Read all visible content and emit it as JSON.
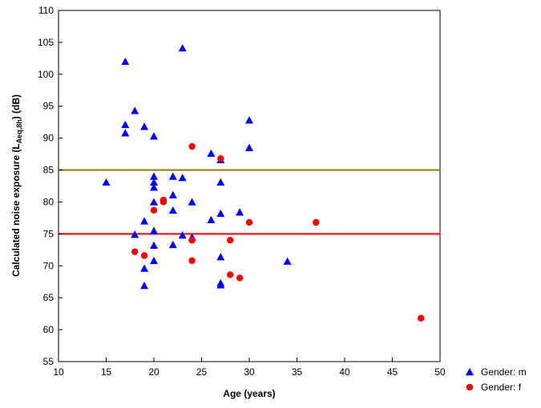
{
  "chart_data": {
    "type": "scatter",
    "title": "",
    "xlabel": "Age (years)",
    "ylabel": {
      "prefix": "Calculated noise exposure (L",
      "subscript": "Aeq,8h",
      "suffix": ") (dB)"
    },
    "xlim": [
      10,
      50
    ],
    "ylim": [
      55,
      110
    ],
    "xticks": [
      10,
      15,
      20,
      25,
      30,
      35,
      40,
      45,
      50
    ],
    "yticks": [
      55,
      60,
      65,
      70,
      75,
      80,
      85,
      90,
      95,
      100,
      105,
      110
    ],
    "grid": false,
    "legend_position": "bottom-right outside",
    "reference_lines": [
      {
        "y": 85,
        "color": "#8b7a00"
      },
      {
        "y": 75,
        "color": "#ff0000"
      }
    ],
    "series": [
      {
        "name": "Gender: m",
        "marker": "triangle",
        "color": "#0000ff",
        "points": [
          [
            15,
            83.1
          ],
          [
            17,
            102
          ],
          [
            17,
            92.1
          ],
          [
            17,
            90.8
          ],
          [
            18,
            94.3
          ],
          [
            18,
            74.9
          ],
          [
            19,
            91.8
          ],
          [
            19,
            77
          ],
          [
            19,
            69.6
          ],
          [
            19,
            66.9
          ],
          [
            20,
            90.3
          ],
          [
            20,
            84
          ],
          [
            20,
            83.1
          ],
          [
            20,
            82.3
          ],
          [
            20,
            80
          ],
          [
            20,
            75.5
          ],
          [
            20,
            73.2
          ],
          [
            20,
            70.8
          ],
          [
            22,
            84
          ],
          [
            22,
            81.1
          ],
          [
            22,
            78.7
          ],
          [
            22,
            73.3
          ],
          [
            23,
            104.1
          ],
          [
            23,
            83.8
          ],
          [
            23,
            74.8
          ],
          [
            24,
            80
          ],
          [
            24,
            74.5
          ],
          [
            26,
            87.6
          ],
          [
            26,
            77.2
          ],
          [
            27,
            86.6
          ],
          [
            27,
            83.1
          ],
          [
            27,
            78.2
          ],
          [
            27,
            71.4
          ],
          [
            27,
            67.3
          ],
          [
            27,
            67
          ],
          [
            29,
            78.4
          ],
          [
            30,
            92.8
          ],
          [
            30,
            88.5
          ],
          [
            34,
            70.7
          ]
        ]
      },
      {
        "name": "Gender: f",
        "marker": "circle",
        "color": "#ff0000",
        "points": [
          [
            18,
            72.2
          ],
          [
            19,
            71.6
          ],
          [
            20,
            78.7
          ],
          [
            21,
            80.3
          ],
          [
            21,
            80
          ],
          [
            24,
            88.7
          ],
          [
            24,
            74
          ],
          [
            24,
            70.8
          ],
          [
            27,
            86.8
          ],
          [
            28,
            74
          ],
          [
            28,
            68.6
          ],
          [
            29,
            68.1
          ],
          [
            30,
            76.8
          ],
          [
            37,
            76.8
          ],
          [
            48,
            61.8
          ]
        ]
      }
    ]
  }
}
